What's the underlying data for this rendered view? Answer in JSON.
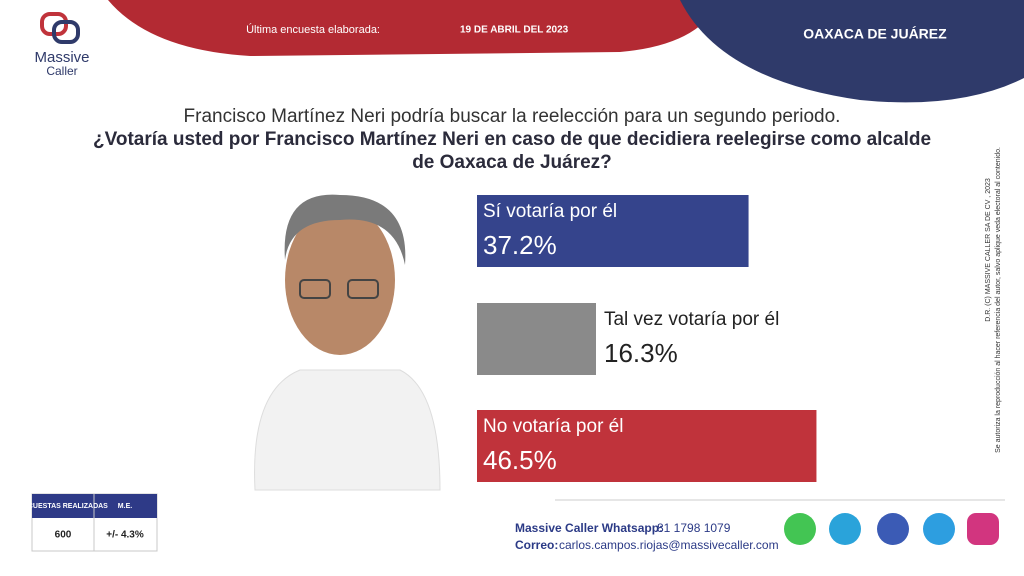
{
  "header": {
    "survey_label": "Última encuesta elaborada:",
    "survey_date": "19 DE ABRIL DEL 2023",
    "place": "OAXACA DE JUÁREZ"
  },
  "logo": {
    "line1": "Massive",
    "line2": "Caller"
  },
  "question": {
    "intro": "Francisco Martínez Neri podría buscar la reelección para un segundo periodo.",
    "lines": [
      "¿Votaría usted por Francisco Martínez Neri en caso de que decidiera reelegirse como alcalde",
      "de Oaxaca de Juárez?"
    ]
  },
  "chart_data": {
    "type": "bar",
    "categories": [
      "Sí votaría por él",
      "Tal vez votaría por él",
      "No votaría por él"
    ],
    "values": [
      37.2,
      16.3,
      46.5
    ],
    "value_labels": [
      "37.2%",
      "16.3%",
      "46.5%"
    ],
    "colors": [
      "#35448c",
      "#8a8a8a",
      "#c0333b"
    ]
  },
  "survey_table": {
    "headers": [
      "ENCUESTAS REALIZADAS",
      "M.E."
    ],
    "row": [
      "600",
      "+/- 4.3%"
    ]
  },
  "footer": {
    "whatsapp_label": "Massive Caller Whatsapp:",
    "whatsapp": "81 1798 1079",
    "email_label": "Correo:",
    "email": "carlos.campos.riojas@massivecaller.com"
  },
  "copyright": {
    "line1": "D.R. (C) MASSIVE CALLER SA DE CV , 2023",
    "line2": "Se autoriza la reproducción al hacer referencia del autor, salvo aplique veda electoral al contenido."
  }
}
